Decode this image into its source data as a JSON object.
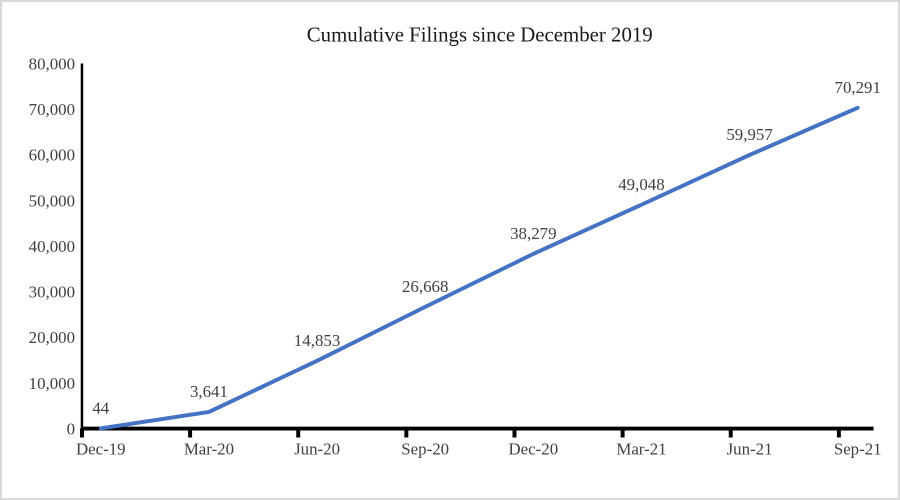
{
  "frame": {
    "background": "#ffffff",
    "border_color": "#d9d9d9"
  },
  "chart_data": {
    "type": "line",
    "title": "Cumulative Filings since December 2019",
    "categories": [
      "Dec-19",
      "Mar-20",
      "Jun-20",
      "Sep-20",
      "Dec-20",
      "Mar-21",
      "Jun-21",
      "Sep-21"
    ],
    "series": [
      {
        "name": "Cumulative Filings",
        "values": [
          44,
          3641,
          14853,
          26668,
          38279,
          49048,
          59957,
          70291
        ]
      }
    ],
    "data_labels": [
      "44",
      "3,641",
      "14,853",
      "26,668",
      "38,279",
      "49,048",
      "59,957",
      "70,291"
    ],
    "xlabel": "",
    "ylabel": "",
    "y_axis": {
      "min": 0,
      "max": 80000,
      "step": 10000,
      "tick_labels": [
        "0",
        "10,000",
        "20,000",
        "30,000",
        "40,000",
        "50,000",
        "60,000",
        "70,000",
        "80,000"
      ]
    },
    "grid": false,
    "legend": "none",
    "colors": {
      "line": "#4472C4",
      "axis": "#000000",
      "tick_label": "#404040",
      "data_label": "#404040",
      "title": "#1a1a1a"
    }
  }
}
